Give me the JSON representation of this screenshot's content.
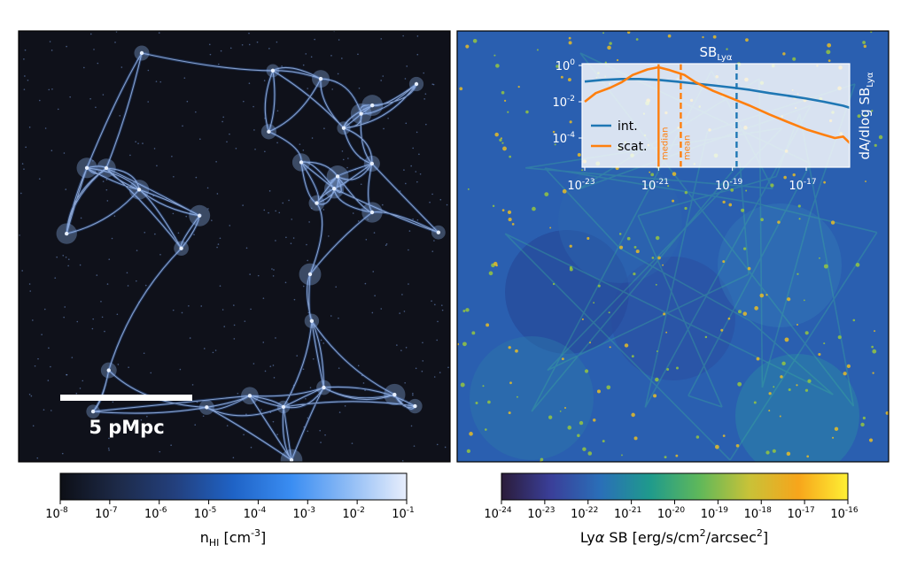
{
  "panels": {
    "left": {
      "scalebar_label": "5 pMpc",
      "colorbar": {
        "tick_labels": [
          "10",
          "10",
          "10",
          "10",
          "10",
          "10",
          "10",
          "10"
        ],
        "tick_exponents": [
          "-8",
          "-7",
          "-6",
          "-5",
          "-4",
          "-3",
          "-2",
          "-1"
        ],
        "label_base": "n",
        "label_sub": "HI",
        "label_unit": " [cm",
        "label_unit_exp": "-3",
        "label_unit_end": "]",
        "colors": [
          "#0d0f16",
          "#1d2a48",
          "#23407e",
          "#1f63c6",
          "#3a8df2",
          "#8fbcf5",
          "#e8eefc"
        ]
      }
    },
    "right": {
      "colorbar": {
        "tick_labels": [
          "10",
          "10",
          "10",
          "10",
          "10",
          "10",
          "10",
          "10",
          "10"
        ],
        "tick_exponents": [
          "-24",
          "-23",
          "-22",
          "-21",
          "-20",
          "-19",
          "-18",
          "-17",
          "-16"
        ],
        "label_pre": "Ly",
        "label_alpha": "α",
        "label_rest": " SB [erg/s/cm",
        "label_exp": "2",
        "label_end": "/arcsec",
        "label_exp2": "2",
        "label_close": "]",
        "colors": [
          "#2b1c3a",
          "#3a3f99",
          "#2a6fb8",
          "#1f9a8c",
          "#5fb85a",
          "#c8c238",
          "#f7a51b",
          "#fef034"
        ]
      }
    }
  },
  "chart_data": {
    "type": "line",
    "xscale": "log",
    "yscale": "log",
    "xlim": [
      1e-23,
      3e-16
    ],
    "ylim": [
      2e-05,
      1
    ],
    "x_tick_labels": [
      "10",
      "10",
      "10",
      "10"
    ],
    "x_tick_exponents": [
      "-23",
      "-21",
      "-19",
      "-17"
    ],
    "y_tick_labels": [
      "10",
      "10",
      "10",
      "10"
    ],
    "y_tick_exponents": [
      "0",
      "-2",
      "-4",
      ""
    ],
    "y_tick_labels_full": [
      "10",
      "10",
      "10"
    ],
    "top_label": "SB",
    "top_label_sub": "Lyα",
    "ylabel": "dA/dlog SB",
    "ylabel_sub": "Lyα",
    "legend_position": "lower-left",
    "series": [
      {
        "name": "int.",
        "color": "#1f77b4",
        "x": [
          1e-23,
          3e-23,
          1e-22,
          3e-22,
          1e-21,
          3e-21,
          1e-20,
          3e-20,
          1e-19,
          3e-19,
          1e-18,
          3e-18,
          1e-17,
          3e-17,
          1e-16,
          3e-16
        ],
        "y": [
          0.13,
          0.16,
          0.18,
          0.18,
          0.16,
          0.13,
          0.1,
          0.08,
          0.06,
          0.045,
          0.03,
          0.022,
          0.015,
          0.01,
          0.006,
          0.003
        ]
      },
      {
        "name": "scat.",
        "color": "#ff7f0e",
        "x": [
          1e-23,
          2e-23,
          5e-23,
          1e-22,
          2e-22,
          5e-22,
          1e-21,
          2e-21,
          5e-21,
          1e-20,
          3e-20,
          1e-19,
          3e-19,
          1e-18,
          3e-18,
          1e-17,
          3e-17,
          6e-17,
          1e-16,
          2e-16,
          3e-16
        ],
        "y": [
          0.01,
          0.03,
          0.06,
          0.12,
          0.3,
          0.6,
          0.8,
          0.55,
          0.3,
          0.12,
          0.04,
          0.015,
          0.006,
          0.002,
          0.0008,
          0.0003,
          0.00015,
          0.0001,
          0.00012,
          3e-05,
          2e-05
        ]
      }
    ],
    "vlines": [
      {
        "x": 1e-21,
        "color": "#ff7f0e",
        "style": "solid",
        "label": "median"
      },
      {
        "x": 4e-21,
        "color": "#ff7f0e",
        "style": "dashed",
        "label": "mean"
      },
      {
        "x": 1.3e-19,
        "color": "#1f77b4",
        "style": "dashed",
        "label": ""
      }
    ]
  }
}
